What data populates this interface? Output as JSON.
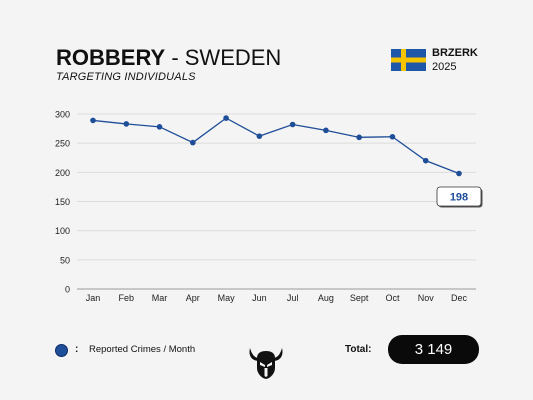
{
  "header": {
    "title_bold": "ROBBERY",
    "title_rest": " - SWEDEN",
    "subtitle": "TARGETING INDIVIDUALS",
    "brand": "BRZERK",
    "year": "2025",
    "flag_colors": {
      "field": "#1f57a8",
      "cross": "#f5c400"
    }
  },
  "legend": {
    "label": "Reported Crimes / Month",
    "separator": ":",
    "color": "#1f4e99"
  },
  "footer": {
    "total_label": "Total:",
    "total_value": "3 149",
    "logo_icon": "horned-helmet-icon"
  },
  "chart_data": {
    "type": "line",
    "categories": [
      "Jan",
      "Feb",
      "Mar",
      "Apr",
      "May",
      "Jun",
      "Jul",
      "Aug",
      "Sept",
      "Oct",
      "Nov",
      "Dec"
    ],
    "series": [
      {
        "name": "Reported Crimes / Month",
        "values": [
          289,
          283,
          278,
          251,
          293,
          262,
          282,
          272,
          260,
          261,
          220,
          198
        ]
      }
    ],
    "yticks": [
      0,
      50,
      100,
      150,
      200,
      250,
      300
    ],
    "ylim": [
      0,
      300
    ],
    "grid": true,
    "callout": {
      "category": "Dec",
      "value": "198"
    },
    "line_color": "#1f4e99"
  }
}
